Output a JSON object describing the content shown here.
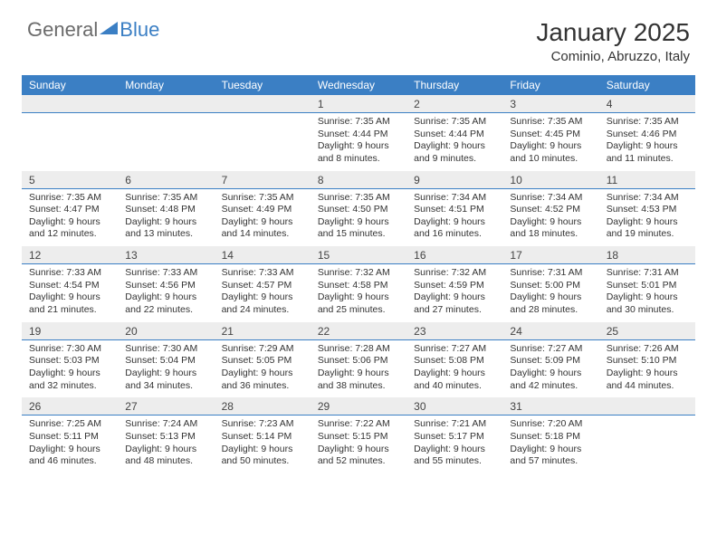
{
  "brand": {
    "part1": "General",
    "part2": "Blue"
  },
  "title": "January 2025",
  "location": "Cominio, Abruzzo, Italy",
  "colors": {
    "accent": "#3b7fc4",
    "band": "#ededed",
    "text": "#333333",
    "bg": "#ffffff"
  },
  "fonts": {
    "title_pt": 28,
    "location_pt": 15,
    "dayhead_pt": 12,
    "cell_pt": 10.5
  },
  "day_headers": [
    "Sunday",
    "Monday",
    "Tuesday",
    "Wednesday",
    "Thursday",
    "Friday",
    "Saturday"
  ],
  "weeks": [
    {
      "nums": [
        "",
        "",
        "",
        "1",
        "2",
        "3",
        "4"
      ],
      "cells": [
        null,
        null,
        null,
        {
          "sunrise": "Sunrise: 7:35 AM",
          "sunset": "Sunset: 4:44 PM",
          "day1": "Daylight: 9 hours",
          "day2": "and 8 minutes."
        },
        {
          "sunrise": "Sunrise: 7:35 AM",
          "sunset": "Sunset: 4:44 PM",
          "day1": "Daylight: 9 hours",
          "day2": "and 9 minutes."
        },
        {
          "sunrise": "Sunrise: 7:35 AM",
          "sunset": "Sunset: 4:45 PM",
          "day1": "Daylight: 9 hours",
          "day2": "and 10 minutes."
        },
        {
          "sunrise": "Sunrise: 7:35 AM",
          "sunset": "Sunset: 4:46 PM",
          "day1": "Daylight: 9 hours",
          "day2": "and 11 minutes."
        }
      ]
    },
    {
      "nums": [
        "5",
        "6",
        "7",
        "8",
        "9",
        "10",
        "11"
      ],
      "cells": [
        {
          "sunrise": "Sunrise: 7:35 AM",
          "sunset": "Sunset: 4:47 PM",
          "day1": "Daylight: 9 hours",
          "day2": "and 12 minutes."
        },
        {
          "sunrise": "Sunrise: 7:35 AM",
          "sunset": "Sunset: 4:48 PM",
          "day1": "Daylight: 9 hours",
          "day2": "and 13 minutes."
        },
        {
          "sunrise": "Sunrise: 7:35 AM",
          "sunset": "Sunset: 4:49 PM",
          "day1": "Daylight: 9 hours",
          "day2": "and 14 minutes."
        },
        {
          "sunrise": "Sunrise: 7:35 AM",
          "sunset": "Sunset: 4:50 PM",
          "day1": "Daylight: 9 hours",
          "day2": "and 15 minutes."
        },
        {
          "sunrise": "Sunrise: 7:34 AM",
          "sunset": "Sunset: 4:51 PM",
          "day1": "Daylight: 9 hours",
          "day2": "and 16 minutes."
        },
        {
          "sunrise": "Sunrise: 7:34 AM",
          "sunset": "Sunset: 4:52 PM",
          "day1": "Daylight: 9 hours",
          "day2": "and 18 minutes."
        },
        {
          "sunrise": "Sunrise: 7:34 AM",
          "sunset": "Sunset: 4:53 PM",
          "day1": "Daylight: 9 hours",
          "day2": "and 19 minutes."
        }
      ]
    },
    {
      "nums": [
        "12",
        "13",
        "14",
        "15",
        "16",
        "17",
        "18"
      ],
      "cells": [
        {
          "sunrise": "Sunrise: 7:33 AM",
          "sunset": "Sunset: 4:54 PM",
          "day1": "Daylight: 9 hours",
          "day2": "and 21 minutes."
        },
        {
          "sunrise": "Sunrise: 7:33 AM",
          "sunset": "Sunset: 4:56 PM",
          "day1": "Daylight: 9 hours",
          "day2": "and 22 minutes."
        },
        {
          "sunrise": "Sunrise: 7:33 AM",
          "sunset": "Sunset: 4:57 PM",
          "day1": "Daylight: 9 hours",
          "day2": "and 24 minutes."
        },
        {
          "sunrise": "Sunrise: 7:32 AM",
          "sunset": "Sunset: 4:58 PM",
          "day1": "Daylight: 9 hours",
          "day2": "and 25 minutes."
        },
        {
          "sunrise": "Sunrise: 7:32 AM",
          "sunset": "Sunset: 4:59 PM",
          "day1": "Daylight: 9 hours",
          "day2": "and 27 minutes."
        },
        {
          "sunrise": "Sunrise: 7:31 AM",
          "sunset": "Sunset: 5:00 PM",
          "day1": "Daylight: 9 hours",
          "day2": "and 28 minutes."
        },
        {
          "sunrise": "Sunrise: 7:31 AM",
          "sunset": "Sunset: 5:01 PM",
          "day1": "Daylight: 9 hours",
          "day2": "and 30 minutes."
        }
      ]
    },
    {
      "nums": [
        "19",
        "20",
        "21",
        "22",
        "23",
        "24",
        "25"
      ],
      "cells": [
        {
          "sunrise": "Sunrise: 7:30 AM",
          "sunset": "Sunset: 5:03 PM",
          "day1": "Daylight: 9 hours",
          "day2": "and 32 minutes."
        },
        {
          "sunrise": "Sunrise: 7:30 AM",
          "sunset": "Sunset: 5:04 PM",
          "day1": "Daylight: 9 hours",
          "day2": "and 34 minutes."
        },
        {
          "sunrise": "Sunrise: 7:29 AM",
          "sunset": "Sunset: 5:05 PM",
          "day1": "Daylight: 9 hours",
          "day2": "and 36 minutes."
        },
        {
          "sunrise": "Sunrise: 7:28 AM",
          "sunset": "Sunset: 5:06 PM",
          "day1": "Daylight: 9 hours",
          "day2": "and 38 minutes."
        },
        {
          "sunrise": "Sunrise: 7:27 AM",
          "sunset": "Sunset: 5:08 PM",
          "day1": "Daylight: 9 hours",
          "day2": "and 40 minutes."
        },
        {
          "sunrise": "Sunrise: 7:27 AM",
          "sunset": "Sunset: 5:09 PM",
          "day1": "Daylight: 9 hours",
          "day2": "and 42 minutes."
        },
        {
          "sunrise": "Sunrise: 7:26 AM",
          "sunset": "Sunset: 5:10 PM",
          "day1": "Daylight: 9 hours",
          "day2": "and 44 minutes."
        }
      ]
    },
    {
      "nums": [
        "26",
        "27",
        "28",
        "29",
        "30",
        "31",
        ""
      ],
      "cells": [
        {
          "sunrise": "Sunrise: 7:25 AM",
          "sunset": "Sunset: 5:11 PM",
          "day1": "Daylight: 9 hours",
          "day2": "and 46 minutes."
        },
        {
          "sunrise": "Sunrise: 7:24 AM",
          "sunset": "Sunset: 5:13 PM",
          "day1": "Daylight: 9 hours",
          "day2": "and 48 minutes."
        },
        {
          "sunrise": "Sunrise: 7:23 AM",
          "sunset": "Sunset: 5:14 PM",
          "day1": "Daylight: 9 hours",
          "day2": "and 50 minutes."
        },
        {
          "sunrise": "Sunrise: 7:22 AM",
          "sunset": "Sunset: 5:15 PM",
          "day1": "Daylight: 9 hours",
          "day2": "and 52 minutes."
        },
        {
          "sunrise": "Sunrise: 7:21 AM",
          "sunset": "Sunset: 5:17 PM",
          "day1": "Daylight: 9 hours",
          "day2": "and 55 minutes."
        },
        {
          "sunrise": "Sunrise: 7:20 AM",
          "sunset": "Sunset: 5:18 PM",
          "day1": "Daylight: 9 hours",
          "day2": "and 57 minutes."
        },
        null
      ]
    }
  ]
}
